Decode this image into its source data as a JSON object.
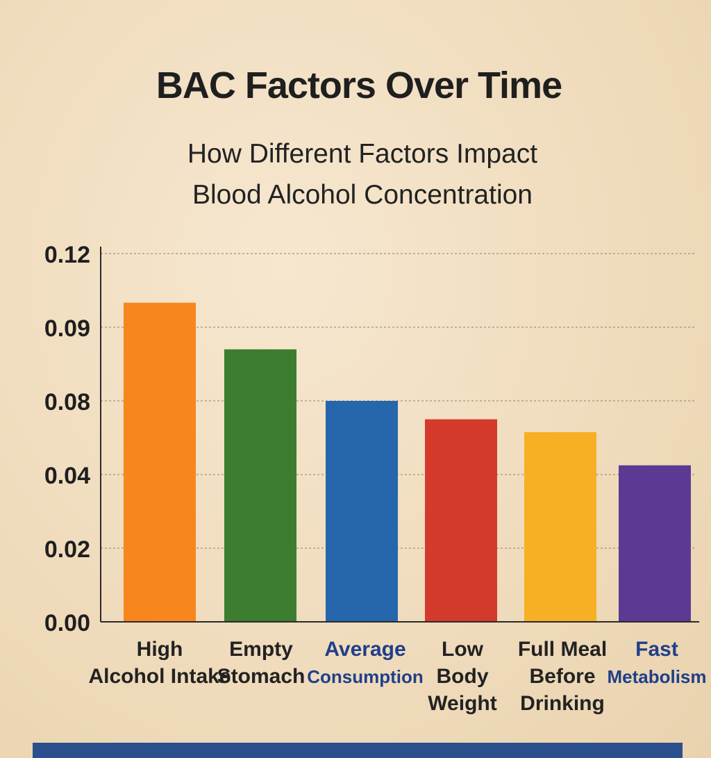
{
  "chart_data": {
    "type": "bar",
    "title": "BAC Factors Over Time",
    "subtitle_lines": [
      "How Different Factors Impact",
      "Blood Alcohol Concentration"
    ],
    "xlabel": "",
    "ylabel": "",
    "y_ticks": [
      "0.00",
      "0.02",
      "0.04",
      "0.08",
      "0.09",
      "0.12"
    ],
    "grid": true,
    "categories": [
      {
        "lines": [
          "High",
          "Alcohol Intake"
        ],
        "color": "#222222"
      },
      {
        "lines": [
          "Empty",
          "Stomach"
        ],
        "color": "#222222"
      },
      {
        "lines": [
          "Average",
          "Consumption"
        ],
        "color": "#1f3f8a"
      },
      {
        "lines": [
          "Low",
          "Body",
          "Weight"
        ],
        "color": "#222222"
      },
      {
        "lines": [
          "Full Meal",
          "Before",
          "Drinking"
        ],
        "color": "#222222"
      },
      {
        "lines": [
          "Fast",
          "Metabolism"
        ],
        "color": "#1f3f8a"
      }
    ],
    "values": [
      0.1,
      0.087,
      0.08,
      0.07,
      0.063,
      0.045
    ],
    "bar_colors": [
      "#f7861c",
      "#3d7d2f",
      "#2566ad",
      "#d43a2c",
      "#f7b023",
      "#5c3a93"
    ]
  }
}
